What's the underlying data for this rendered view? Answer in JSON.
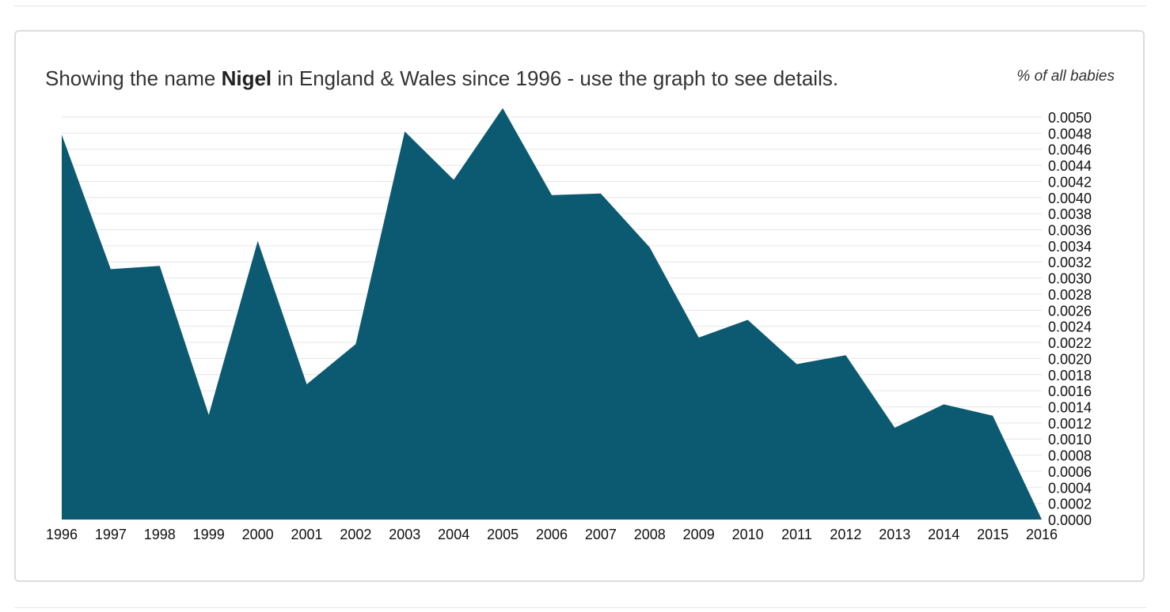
{
  "heading": {
    "prefix": "Showing the name ",
    "name": "Nigel",
    "suffix": " in England & Wales since 1996 - use the graph to see details."
  },
  "unit_label": "% of all babies",
  "chart_data": {
    "type": "area",
    "title": "Showing the name Nigel in England & Wales since 1996 - use the graph to see details.",
    "ylabel": "% of all babies",
    "xlabel": "",
    "x": [
      1996,
      1997,
      1998,
      1999,
      2000,
      2001,
      2002,
      2003,
      2004,
      2005,
      2006,
      2007,
      2008,
      2009,
      2010,
      2011,
      2012,
      2013,
      2014,
      2015,
      2016
    ],
    "x_tick_labels": [
      "1996",
      "1997",
      "1998",
      "1999",
      "2000",
      "2001",
      "2002",
      "2003",
      "2004",
      "2005",
      "2006",
      "2007",
      "2008",
      "2009",
      "2010",
      "2011",
      "2012",
      "2013",
      "2014",
      "2015",
      "2016"
    ],
    "series": [
      {
        "values": [
          0.00478,
          0.00311,
          0.00315,
          0.0013,
          0.00346,
          0.00168,
          0.00218,
          0.00482,
          0.00422,
          0.00511,
          0.00403,
          0.00405,
          0.00338,
          0.00226,
          0.00248,
          0.00193,
          0.00204,
          0.00114,
          0.00143,
          0.00129,
          0.0
        ],
        "color": "#0c5a72"
      }
    ],
    "ylim": [
      0,
      0.005
    ],
    "y_ticks": [
      "0.0000",
      "0.0002",
      "0.0004",
      "0.0006",
      "0.0008",
      "0.0010",
      "0.0012",
      "0.0014",
      "0.0016",
      "0.0018",
      "0.0020",
      "0.0022",
      "0.0024",
      "0.0026",
      "0.0028",
      "0.0030",
      "0.0032",
      "0.0034",
      "0.0036",
      "0.0038",
      "0.0040",
      "0.0042",
      "0.0044",
      "0.0046",
      "0.0048",
      "0.0050"
    ],
    "y_axis_side": "right",
    "grid": true,
    "legend": "none",
    "colors": {
      "area": "#0c5a72",
      "grid": "#e6e6e6"
    }
  }
}
